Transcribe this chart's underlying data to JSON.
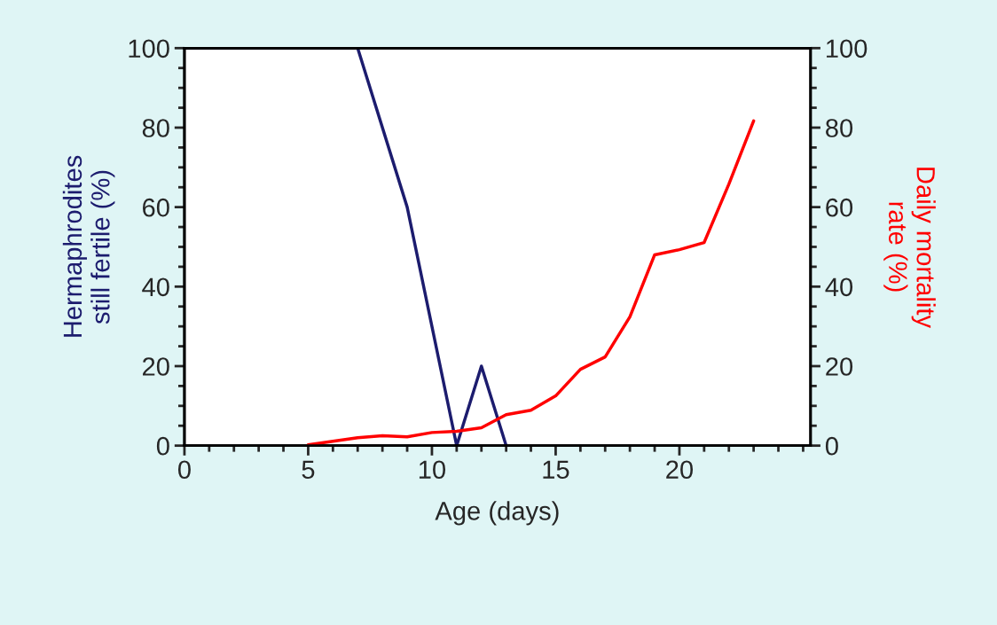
{
  "chart_data": {
    "type": "line",
    "xlabel": "Age (days)",
    "ylabel": "Hermaphrodites\nstill fertile (%)",
    "y2label": "Daily mortality\nrate (%)",
    "xlim": [
      0,
      25.3
    ],
    "xticks": [
      0,
      5,
      10,
      15,
      20
    ],
    "ylim": [
      0,
      100
    ],
    "yticks": [
      0,
      20,
      40,
      60,
      80,
      100
    ],
    "y2lim": [
      0,
      100
    ],
    "y2ticks": [
      0,
      20,
      40,
      60,
      80,
      100
    ],
    "grid": false,
    "legend": false,
    "marker": "none",
    "line_style": "solid",
    "series": [
      {
        "color": "#1c1c6e",
        "x": [
          0,
          7,
          9,
          11,
          12,
          13
        ],
        "values": [
          100,
          100,
          60,
          0,
          20,
          0
        ]
      },
      {
        "color": "#ff0000",
        "axis": "y2",
        "x": [
          5,
          6,
          7,
          8,
          9,
          10,
          11,
          12,
          13,
          14,
          15,
          16,
          17,
          18,
          19,
          20,
          21,
          22,
          23
        ],
        "values": [
          0.2,
          1.1,
          2,
          2.5,
          2.2,
          3.3,
          3.6,
          4.5,
          7.8,
          8.9,
          12.5,
          19.2,
          22.3,
          32.4,
          48,
          49.3,
          51.1,
          65.8,
          81.7
        ]
      }
    ]
  }
}
